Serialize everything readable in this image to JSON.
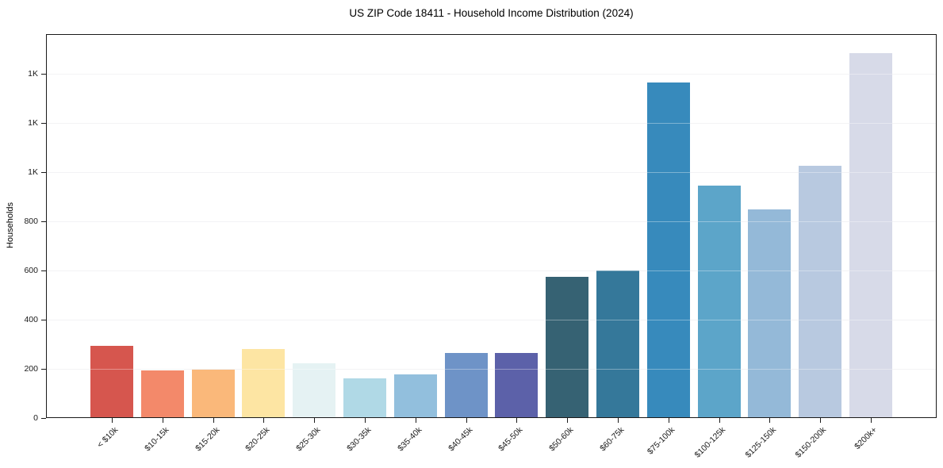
{
  "chart_data": {
    "type": "bar",
    "title": "US ZIP Code 18411 - Household Income Distribution (2024)",
    "xlabel": "",
    "ylabel": "Households",
    "categories": [
      "< $10k",
      "$10-15k",
      "$15-20k",
      "$20-25k",
      "$25-30k",
      "$30-35k",
      "$35-40k",
      "$40-45k",
      "$45-50k",
      "$50-60k",
      "$60-75k",
      "$75-100k",
      "$100-125k",
      "$125-150k",
      "$150-200k",
      "$200k+"
    ],
    "values": [
      290,
      190,
      195,
      278,
      220,
      158,
      175,
      260,
      260,
      572,
      595,
      1360,
      940,
      846,
      1023,
      1480
    ],
    "bar_colors": [
      "#d6564e",
      "#f3896a",
      "#fab87a",
      "#fde5a3",
      "#e5f2f3",
      "#b0d9e6",
      "#92bfdd",
      "#6e93c7",
      "#5c61a9",
      "#366273",
      "#35789a",
      "#378abc",
      "#5ca5c9",
      "#94b9d8",
      "#b8c9e0",
      "#d7dae8"
    ],
    "ylim": [
      0,
      1560
    ],
    "yticks": [
      {
        "value": 0,
        "label": "0"
      },
      {
        "value": 200,
        "label": "200"
      },
      {
        "value": 400,
        "label": "400"
      },
      {
        "value": 600,
        "label": "600"
      },
      {
        "value": 800,
        "label": "800"
      },
      {
        "value": 1000,
        "label": "1K"
      },
      {
        "value": 1200,
        "label": "1K"
      },
      {
        "value": 1400,
        "label": "1K"
      }
    ],
    "grid": "horizontal",
    "legend": "none",
    "background_color": "#ffffff",
    "spine_color": "#1a1a1a"
  }
}
